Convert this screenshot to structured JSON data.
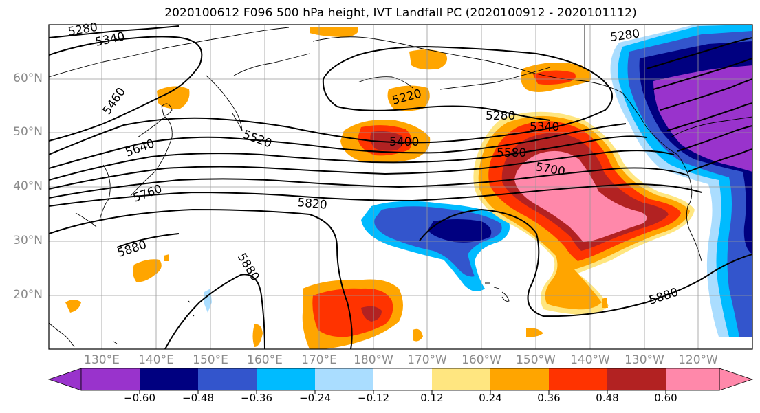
{
  "title": "2020100612 F096 500 hPa height, IVT Landfall PC (2020100912 - 2020101112)",
  "lat_labels": [
    "60°N",
    "50°N",
    "40°N",
    "30°N",
    "20°N"
  ],
  "lon_labels": [
    "130°E",
    "140°E",
    "150°E",
    "160°E",
    "170°E",
    "180°W",
    "170°W",
    "160°W",
    "150°W",
    "140°W",
    "130°W",
    "120°W"
  ],
  "contour_labels": [
    "5280",
    "5340",
    "5460",
    "5640",
    "5760",
    "5520",
    "5220",
    "5400",
    "5280",
    "5340",
    "5580",
    "5700",
    "5820",
    "5880",
    "5880",
    "5880",
    "5280"
  ],
  "colorbar": {
    "tick_labels": [
      "−0.60",
      "−0.48",
      "−0.36",
      "−0.24",
      "−0.12",
      "0.12",
      "0.24",
      "0.36",
      "0.48",
      "0.60"
    ],
    "colors": [
      "#9933cc",
      "#000080",
      "#3355cc",
      "#00bbff",
      "#aaddff",
      "#ffffff",
      "#ffe680",
      "#ffa500",
      "#ff3300",
      "#b22222",
      "#ff88aa"
    ]
  },
  "colors": {
    "pc_neg_060": "#9933cc",
    "pc_neg_048": "#000080",
    "pc_neg_036": "#3355cc",
    "pc_neg_024": "#00bbff",
    "pc_neg_012": "#aaddff",
    "pc_pos_012": "#ffe680",
    "pc_pos_024": "#ffa500",
    "pc_pos_036": "#ff3300",
    "pc_pos_048": "#b22222",
    "pc_pos_060": "#ff88aa"
  }
}
